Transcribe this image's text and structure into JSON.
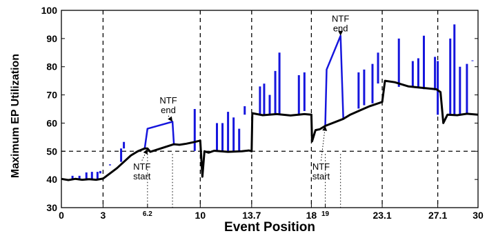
{
  "chart_data": {
    "type": "line",
    "xlabel": "Event Position",
    "ylabel": "Maximum EP Utilization",
    "xlim": [
      0,
      30
    ],
    "ylim": [
      30,
      100
    ],
    "y_ticks": [
      30,
      40,
      50,
      60,
      70,
      80,
      90,
      100
    ],
    "x_ticks": [
      {
        "value": 0,
        "label": "0",
        "small": false
      },
      {
        "value": 3,
        "label": "3",
        "small": false
      },
      {
        "value": 6.2,
        "label": "6.2",
        "small": true
      },
      {
        "value": 10,
        "label": "10",
        "small": false
      },
      {
        "value": 13.7,
        "label": "13.7",
        "small": false
      },
      {
        "value": 18,
        "label": "18",
        "small": false
      },
      {
        "value": 19,
        "label": "19",
        "small": true
      },
      {
        "value": 23.1,
        "label": "23.1",
        "small": false
      },
      {
        "value": 27.1,
        "label": "27.1",
        "small": false
      },
      {
        "value": 30,
        "label": "30",
        "small": false
      }
    ],
    "vertical_dashed_lines": [
      3,
      10,
      13.7,
      18,
      23.1,
      27.1
    ],
    "horizontal_dashed_line": 50,
    "dotted_markers": [
      6.2,
      8,
      19,
      20.1
    ],
    "annotations": [
      {
        "text": [
          "NTF",
          "start"
        ],
        "x": 5.8,
        "y": 43.5,
        "arrow_to": [
          6.2,
          50.8
        ]
      },
      {
        "text": [
          "NTF",
          "end"
        ],
        "x": 7.7,
        "y": 67,
        "arrow_to": [
          8,
          60.5
        ]
      },
      {
        "text": [
          "NTF",
          "start"
        ],
        "x": 18.7,
        "y": 43.5,
        "arrow_to": [
          19,
          59
        ]
      },
      {
        "text": [
          "NTF",
          "end"
        ],
        "x": 20.1,
        "y": 96,
        "arrow_to": [
          20.1,
          91
        ]
      }
    ],
    "series": [
      {
        "color": "#1515dd",
        "kind": "spikes",
        "points": [
          [
            0.8,
            41.3
          ],
          [
            1.3,
            41.3
          ],
          [
            1.8,
            42.5
          ],
          [
            2.2,
            42.7
          ],
          [
            2.6,
            42.7
          ],
          [
            2.8,
            43
          ],
          [
            3.5,
            45
          ],
          [
            4.3,
            51
          ],
          [
            4.5,
            51
          ],
          [
            9.6,
            65
          ],
          [
            11.2,
            60
          ],
          [
            11.6,
            60
          ],
          [
            12.0,
            64
          ],
          [
            12.4,
            62
          ],
          [
            12.8,
            58
          ],
          [
            13.2,
            66
          ],
          [
            14.3,
            73
          ],
          [
            14.6,
            74
          ],
          [
            15.0,
            70
          ],
          [
            15.4,
            78.5
          ],
          [
            15.7,
            85
          ],
          [
            17.1,
            77
          ],
          [
            17.5,
            78
          ],
          [
            21.4,
            78
          ],
          [
            21.8,
            79
          ],
          [
            22.4,
            81
          ],
          [
            22.8,
            85
          ],
          [
            24.3,
            90
          ],
          [
            25.3,
            82
          ],
          [
            25.7,
            83
          ],
          [
            26.1,
            91
          ],
          [
            26.9,
            83.5
          ],
          [
            27.1,
            82
          ],
          [
            28.0,
            90
          ],
          [
            28.3,
            95
          ],
          [
            28.7,
            80
          ],
          [
            29.2,
            81
          ],
          [
            29.6,
            82
          ]
        ]
      },
      {
        "color": "#1515dd",
        "kind": "line",
        "points": [
          [
            6.0,
            51
          ],
          [
            6.2,
            58
          ],
          [
            8.0,
            60.5
          ],
          [
            8.1,
            52.5
          ]
        ]
      },
      {
        "color": "#1515dd",
        "kind": "line",
        "points": [
          [
            19.0,
            59
          ],
          [
            19.1,
            79
          ],
          [
            20.1,
            91
          ],
          [
            20.3,
            61.5
          ]
        ]
      },
      {
        "color": "#000000",
        "kind": "line",
        "points": [
          [
            0,
            40.2
          ],
          [
            0.5,
            39.8
          ],
          [
            1.0,
            40.2
          ],
          [
            1.5,
            39.9
          ],
          [
            2.0,
            40.1
          ],
          [
            2.5,
            39.9
          ],
          [
            3.0,
            40.3
          ],
          [
            4.0,
            44
          ],
          [
            5.0,
            48.5
          ],
          [
            5.5,
            50
          ],
          [
            6.0,
            51
          ],
          [
            6.2,
            51
          ],
          [
            6.4,
            49.8
          ],
          [
            8.1,
            52.5
          ],
          [
            8.5,
            52.3
          ],
          [
            9.0,
            52.7
          ],
          [
            9.5,
            53.2
          ],
          [
            10.0,
            53.8
          ],
          [
            10.15,
            41
          ],
          [
            10.3,
            50
          ],
          [
            10.6,
            49.5
          ],
          [
            11.0,
            50.2
          ],
          [
            12.0,
            49.8
          ],
          [
            13.0,
            50
          ],
          [
            13.5,
            50.3
          ],
          [
            13.7,
            50
          ],
          [
            13.75,
            63.5
          ],
          [
            14.5,
            62.8
          ],
          [
            15.5,
            63.2
          ],
          [
            16.5,
            62.7
          ],
          [
            17.5,
            63.2
          ],
          [
            18.0,
            63
          ],
          [
            18.05,
            53.5
          ],
          [
            18.3,
            57.5
          ],
          [
            18.6,
            57.8
          ],
          [
            19.0,
            59
          ],
          [
            20.3,
            61.5
          ],
          [
            20.8,
            63
          ],
          [
            21.5,
            64.5
          ],
          [
            22.2,
            66
          ],
          [
            23.1,
            67.5
          ],
          [
            23.3,
            75
          ],
          [
            24.0,
            74.5
          ],
          [
            25.0,
            73
          ],
          [
            26.0,
            72.5
          ],
          [
            27.0,
            72
          ],
          [
            27.3,
            71
          ],
          [
            27.5,
            60
          ],
          [
            27.8,
            63
          ],
          [
            28.5,
            62.8
          ],
          [
            29.2,
            63.3
          ],
          [
            30.0,
            63
          ]
        ]
      }
    ]
  }
}
